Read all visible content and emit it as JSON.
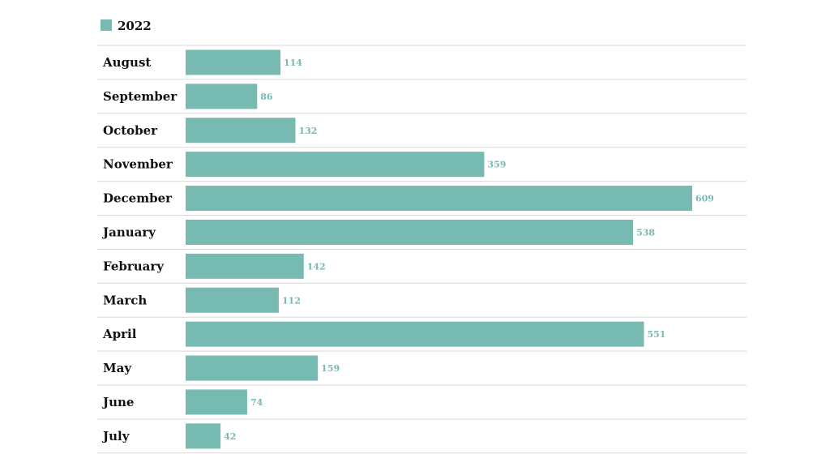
{
  "chart_data": {
    "type": "bar",
    "orientation": "horizontal",
    "legend": {
      "placement": "top-left"
    },
    "series": [
      {
        "name": "2022",
        "color": "#76bab1",
        "values": [
          114,
          86,
          132,
          359,
          609,
          538,
          142,
          112,
          551,
          159,
          74,
          42
        ]
      }
    ],
    "categories": [
      "August",
      "September",
      "October",
      "November",
      "December",
      "January",
      "February",
      "March",
      "April",
      "May",
      "June",
      "July"
    ],
    "grid": false,
    "data_labels": true
  },
  "colors": {
    "bar": "#76bab1",
    "label": "#76bab1",
    "row_divider": "#d9d9d9",
    "text": "#111111"
  }
}
